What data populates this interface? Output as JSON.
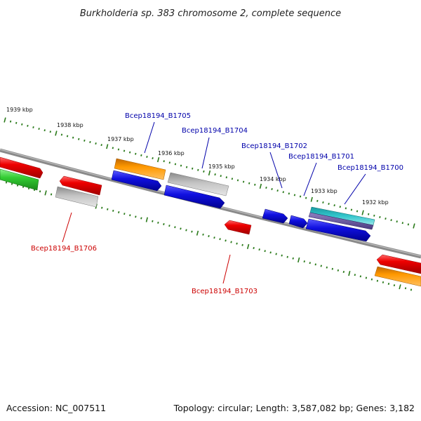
{
  "title": "Burkholderia sp. 383 chromosome 2, complete sequence",
  "footer": {
    "accession": "Accession: NC_007511",
    "topology": "Topology: circular; Length: 3,587,082 bp; Genes: 3,182"
  },
  "colors": {
    "backbone": "#7a7a7a",
    "tick": "#2a7a1a",
    "label_upper": "#0000aa",
    "label_lower": "#cc0000",
    "red": "#ee0000",
    "green": "#33cc33",
    "orange": "#ff9900",
    "blue": "#1010e0",
    "grey": "#bbbbbb",
    "cyan": "#33c6cc",
    "purple": "#7060a0"
  },
  "scale_upper": [
    "1939 kbp",
    "1938 kbp",
    "1937 kbp",
    "1936 kbp",
    "1935 kbp",
    "1934 kbp",
    "1933 kbp",
    "1932 kbp"
  ],
  "gene_labels_upper": [
    "Bcep18194_B1705",
    "Bcep18194_B1704",
    "Bcep18194_B1702",
    "Bcep18194_B1701",
    "Bcep18194_B1700"
  ],
  "gene_labels_lower": [
    "Bcep18194_B1706",
    "Bcep18194_B1703"
  ]
}
